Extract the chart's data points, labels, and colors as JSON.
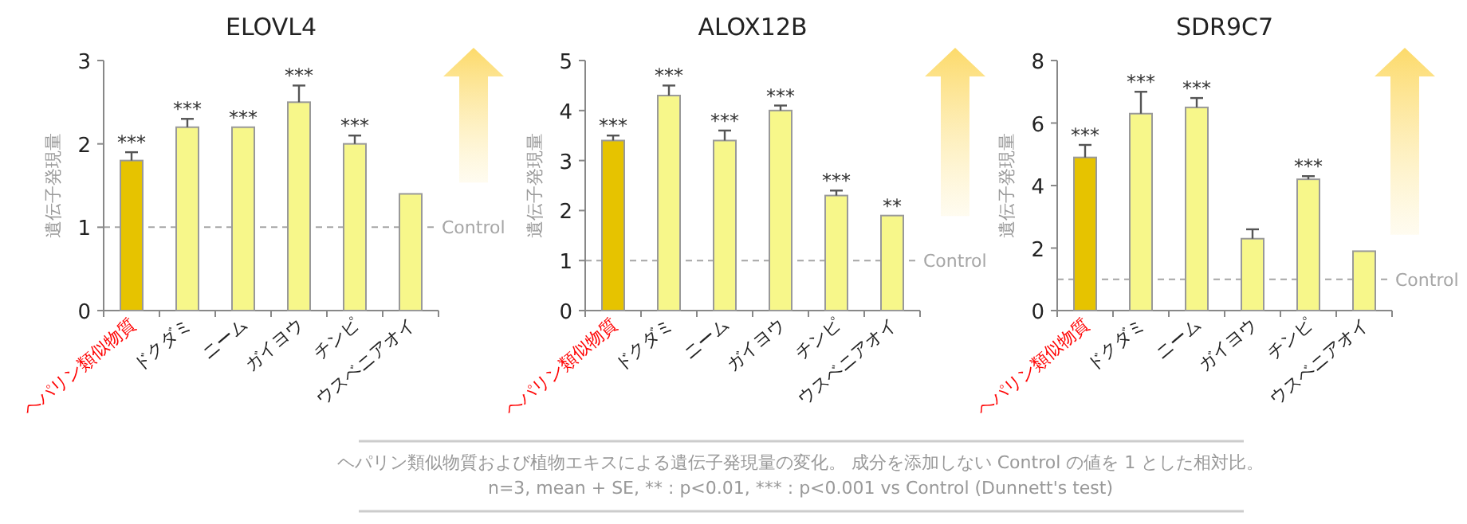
{
  "chart_data": [
    {
      "type": "bar",
      "title": "ELOVL4",
      "ylabel": "遺伝子発現量",
      "categories": [
        "ヘパリン類似物質",
        "ドクダミ",
        "ニーム",
        "ガイヨウ",
        "チンピ",
        "ウスベニアオイ"
      ],
      "series": [
        {
          "colors": [
            "#e6c300",
            "#f7f78a",
            "#f7f78a",
            "#f7f78a",
            "#f7f78a",
            "#f7f78a"
          ],
          "values": [
            1.8,
            2.2,
            2.2,
            2.5,
            2.0,
            1.4
          ],
          "errors": [
            [
              1.8,
              1.9
            ],
            [
              2.2,
              2.3
            ],
            null,
            [
              2.5,
              2.7
            ],
            [
              2.0,
              2.1
            ],
            null
          ],
          "value_labels": [
            "***",
            "***",
            "***",
            "***",
            "***",
            null
          ]
        }
      ],
      "ylim": [
        0,
        3
      ],
      "yticks": [
        0,
        1,
        2,
        3
      ],
      "ref_lines": [
        {
          "axis": "y",
          "value": 1,
          "label": "Control",
          "color": "#a6a6a6",
          "line_style": "dashed"
        }
      ],
      "annotations": [
        "ヘパリン類似物質および植物エキスによる遺伝子発現量の変化。 成分を添加しない Control の値を 1 とした相対比。",
        "n=3, mean + SE,   ** : p<0.01, *** : p<0.001 vs Control (Dunnett's test)"
      ]
    },
    {
      "type": "bar",
      "title": "ALOX12B",
      "ylabel": "遺伝子発現量",
      "categories": [
        "ヘパリン類似物質",
        "ドクダミ",
        "ニーム",
        "ガイヨウ",
        "チンピ",
        "ウスベニアオイ"
      ],
      "series": [
        {
          "colors": [
            "#e6c300",
            "#f7f78a",
            "#f7f78a",
            "#f7f78a",
            "#f7f78a",
            "#f7f78a"
          ],
          "values": [
            3.4,
            4.3,
            3.4,
            4.0,
            2.3,
            1.9
          ],
          "errors": [
            [
              3.4,
              3.5
            ],
            [
              4.3,
              4.5
            ],
            [
              3.4,
              3.6
            ],
            [
              4.0,
              4.1
            ],
            [
              2.3,
              2.4
            ],
            null
          ],
          "value_labels": [
            "***",
            "***",
            "***",
            "***",
            "***",
            "**"
          ]
        }
      ],
      "ylim": [
        0,
        5
      ],
      "yticks": [
        0,
        1,
        2,
        3,
        4,
        5
      ],
      "ref_lines": [
        {
          "axis": "y",
          "value": 1,
          "label": "Control",
          "color": "#a6a6a6",
          "line_style": "dashed"
        }
      ]
    },
    {
      "type": "bar",
      "title": "SDR9C7",
      "ylabel": "遺伝子発現量",
      "categories": [
        "ヘパリン類似物質",
        "ドクダミ",
        "ニーム",
        "ガイヨウ",
        "チンピ",
        "ウスベニアオイ"
      ],
      "series": [
        {
          "colors": [
            "#e6c300",
            "#f7f78a",
            "#f7f78a",
            "#f7f78a",
            "#f7f78a",
            "#f7f78a"
          ],
          "values": [
            4.9,
            6.3,
            6.5,
            2.3,
            4.2,
            1.9
          ],
          "errors": [
            [
              4.9,
              5.3
            ],
            [
              6.3,
              7.0
            ],
            [
              6.5,
              6.8
            ],
            [
              2.3,
              2.6
            ],
            [
              4.2,
              4.3
            ],
            null
          ],
          "value_labels": [
            "***",
            "***",
            "***",
            null,
            "***",
            null
          ]
        }
      ],
      "ylim": [
        0,
        8
      ],
      "yticks": [
        0,
        2,
        4,
        6,
        8
      ],
      "ref_lines": [
        {
          "axis": "y",
          "value": 1,
          "label": "Control",
          "color": "#a6a6a6",
          "line_style": "dashed"
        }
      ]
    }
  ]
}
